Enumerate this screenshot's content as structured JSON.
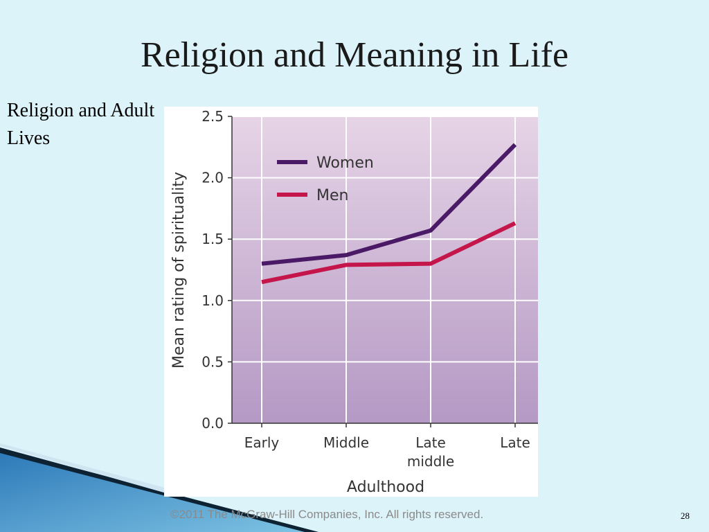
{
  "slide": {
    "title": "Religion and Meaning in Life",
    "side_text": "Religion and Adult Lives",
    "copyright": "©2011 The McGraw-Hill Companies, Inc. All rights reserved.",
    "page_number": "28"
  },
  "chart_data": {
    "type": "line",
    "categories": [
      "Early",
      "Middle",
      "Late\nmiddle",
      "Late"
    ],
    "series": [
      {
        "name": "Women",
        "values": [
          1.3,
          1.37,
          1.57,
          2.27
        ],
        "color": "#4b1a66"
      },
      {
        "name": "Men",
        "values": [
          1.15,
          1.29,
          1.3,
          1.63
        ],
        "color": "#c4164a"
      }
    ],
    "xlabel": "Adulthood",
    "ylabel": "Mean rating of spirituality",
    "ylim": [
      0,
      2.5
    ],
    "yticks": [
      "0.0",
      "0.5",
      "1.0",
      "1.5",
      "2.0",
      "2.5"
    ],
    "grid": true,
    "legend_position": "top-left",
    "background_gradient": [
      "#e6d4e6",
      "#b499c4"
    ]
  }
}
